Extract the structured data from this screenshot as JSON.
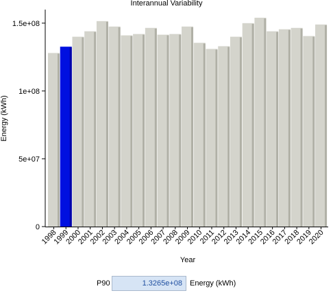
{
  "chart_data": {
    "type": "bar",
    "title": "Interannual Variability",
    "xlabel": "Year",
    "ylabel": "Energy (kWh)",
    "ylim": [
      0,
      160000000
    ],
    "yticks": [
      0,
      50000000,
      100000000,
      150000000
    ],
    "ytick_labels": [
      "0",
      "5e+07",
      "1e+08",
      "1.5e+08"
    ],
    "categories": [
      "1998",
      "1999",
      "2000",
      "2001",
      "2002",
      "2003",
      "2004",
      "2005",
      "2006",
      "2007",
      "2008",
      "2009",
      "2010",
      "2011",
      "2012",
      "2013",
      "2014",
      "2015",
      "2016",
      "2017",
      "2018",
      "2019",
      "2020"
    ],
    "values": [
      128000000,
      132650000,
      140000000,
      144000000,
      151500000,
      147500000,
      141000000,
      142000000,
      146500000,
      141500000,
      142000000,
      147500000,
      135500000,
      131000000,
      133000000,
      140000000,
      150000000,
      154000000,
      144000000,
      145500000,
      146500000,
      140500000,
      149000000
    ],
    "highlighted_category": "1999",
    "colors": {
      "bar": "#d4d4cc",
      "bar_shadow": "#b0b0a6",
      "highlight": "#0010e0",
      "plot_background": "#ffffff"
    },
    "grid": false,
    "legend": false
  },
  "footer": {
    "label": "P90",
    "value": "1.3265e+08",
    "unit": "Energy (kWh)"
  }
}
